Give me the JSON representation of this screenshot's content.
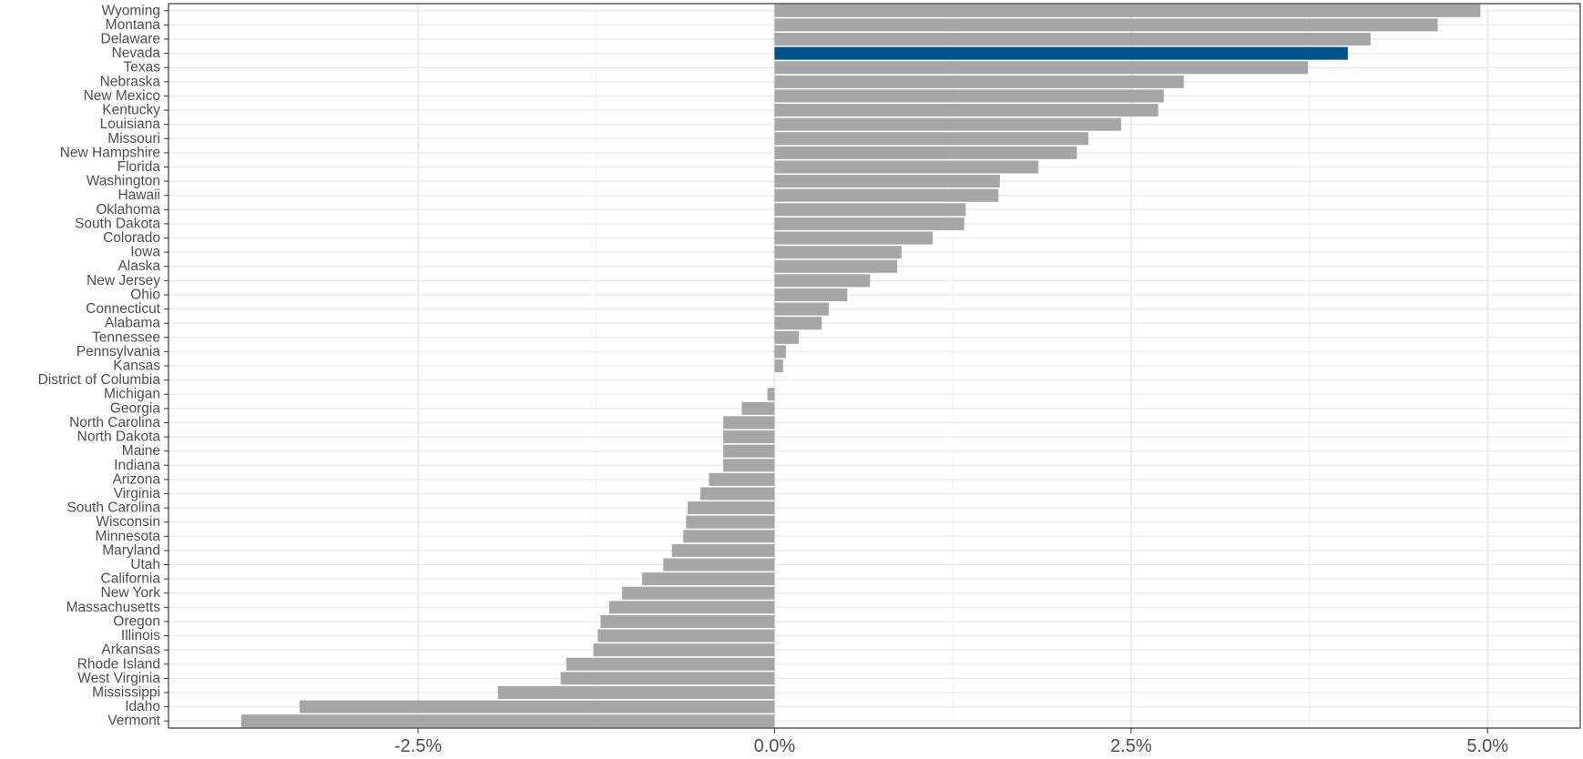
{
  "chart_data": {
    "type": "bar",
    "orientation": "horizontal",
    "title": "",
    "xlabel": "",
    "ylabel": "",
    "xlim": [
      -4.25,
      5.65
    ],
    "grid": true,
    "legend": "none",
    "x_ticks": [
      {
        "value": -2.5,
        "label": "-2.5%"
      },
      {
        "value": 0.0,
        "label": "0.0%"
      },
      {
        "value": 2.5,
        "label": "2.5%"
      },
      {
        "value": 5.0,
        "label": "5.0%"
      }
    ],
    "colors": {
      "default_bar": "#a6a6a6",
      "highlight_bar": "#02528a",
      "grid_major": "#ebebeb",
      "grid_minor": "#f3f3f3",
      "panel_border": "#333333"
    },
    "highlight": "Nevada",
    "categories": [
      "Wyoming",
      "Montana",
      "Delaware",
      "Nevada",
      "Texas",
      "Nebraska",
      "New Mexico",
      "Kentucky",
      "Louisiana",
      "Missouri",
      "New Hampshire",
      "Florida",
      "Washington",
      "Hawaii",
      "Oklahoma",
      "South Dakota",
      "Colorado",
      "Iowa",
      "Alaska",
      "New Jersey",
      "Ohio",
      "Connecticut",
      "Alabama",
      "Tennessee",
      "Pennsylvania",
      "Kansas",
      "District of Columbia",
      "Michigan",
      "Georgia",
      "North Carolina",
      "North Dakota",
      "Maine",
      "Indiana",
      "Arizona",
      "Virginia",
      "South Carolina",
      "Wisconsin",
      "Minnesota",
      "Maryland",
      "Utah",
      "California",
      "New York",
      "Massachusetts",
      "Oregon",
      "Illinois",
      "Arkansas",
      "Rhode Island",
      "West Virginia",
      "Mississippi",
      "Idaho",
      "Vermont"
    ],
    "values": [
      4.95,
      4.65,
      4.18,
      4.02,
      3.74,
      2.87,
      2.73,
      2.69,
      2.43,
      2.2,
      2.12,
      1.85,
      1.58,
      1.57,
      1.34,
      1.33,
      1.11,
      0.89,
      0.86,
      0.67,
      0.51,
      0.38,
      0.33,
      0.17,
      0.08,
      0.06,
      0.0,
      -0.05,
      -0.23,
      -0.36,
      -0.36,
      -0.36,
      -0.36,
      -0.46,
      -0.52,
      -0.61,
      -0.62,
      -0.64,
      -0.72,
      -0.78,
      -0.93,
      -1.07,
      -1.16,
      -1.22,
      -1.24,
      -1.27,
      -1.46,
      -1.5,
      -1.94,
      -3.33,
      -3.74
    ]
  }
}
